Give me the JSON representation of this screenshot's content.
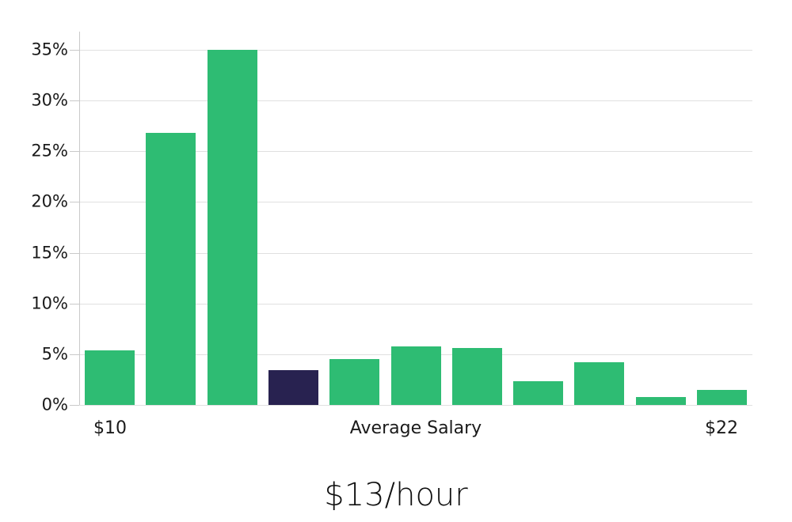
{
  "chart_data": {
    "type": "bar",
    "title": "$13/hour",
    "categories": [
      "$10",
      "",
      "",
      "",
      "",
      "Average Salary",
      "",
      "",
      "",
      "",
      "$22"
    ],
    "values": [
      5.4,
      26.8,
      35.0,
      3.4,
      4.5,
      5.8,
      5.6,
      2.3,
      4.2,
      0.8,
      1.5
    ],
    "highlight_index": 3,
    "y_ticks": {
      "values": [
        0,
        5,
        10,
        15,
        20,
        25,
        30,
        35
      ],
      "labels": [
        "0%",
        "5%",
        "10%",
        "15%",
        "20%",
        "25%",
        "30%",
        "35%"
      ]
    },
    "ylim": [
      0,
      35
    ],
    "xlabel": "",
    "ylabel": "",
    "grid": "horizontal",
    "legend": false,
    "colors": {
      "bar": "#2EBC73",
      "highlight_bar": "#282250",
      "gridline": "#E0E0E0",
      "axis": "#C9C9C9",
      "tick_label": "#1A1A1A",
      "title": "#111111"
    }
  }
}
